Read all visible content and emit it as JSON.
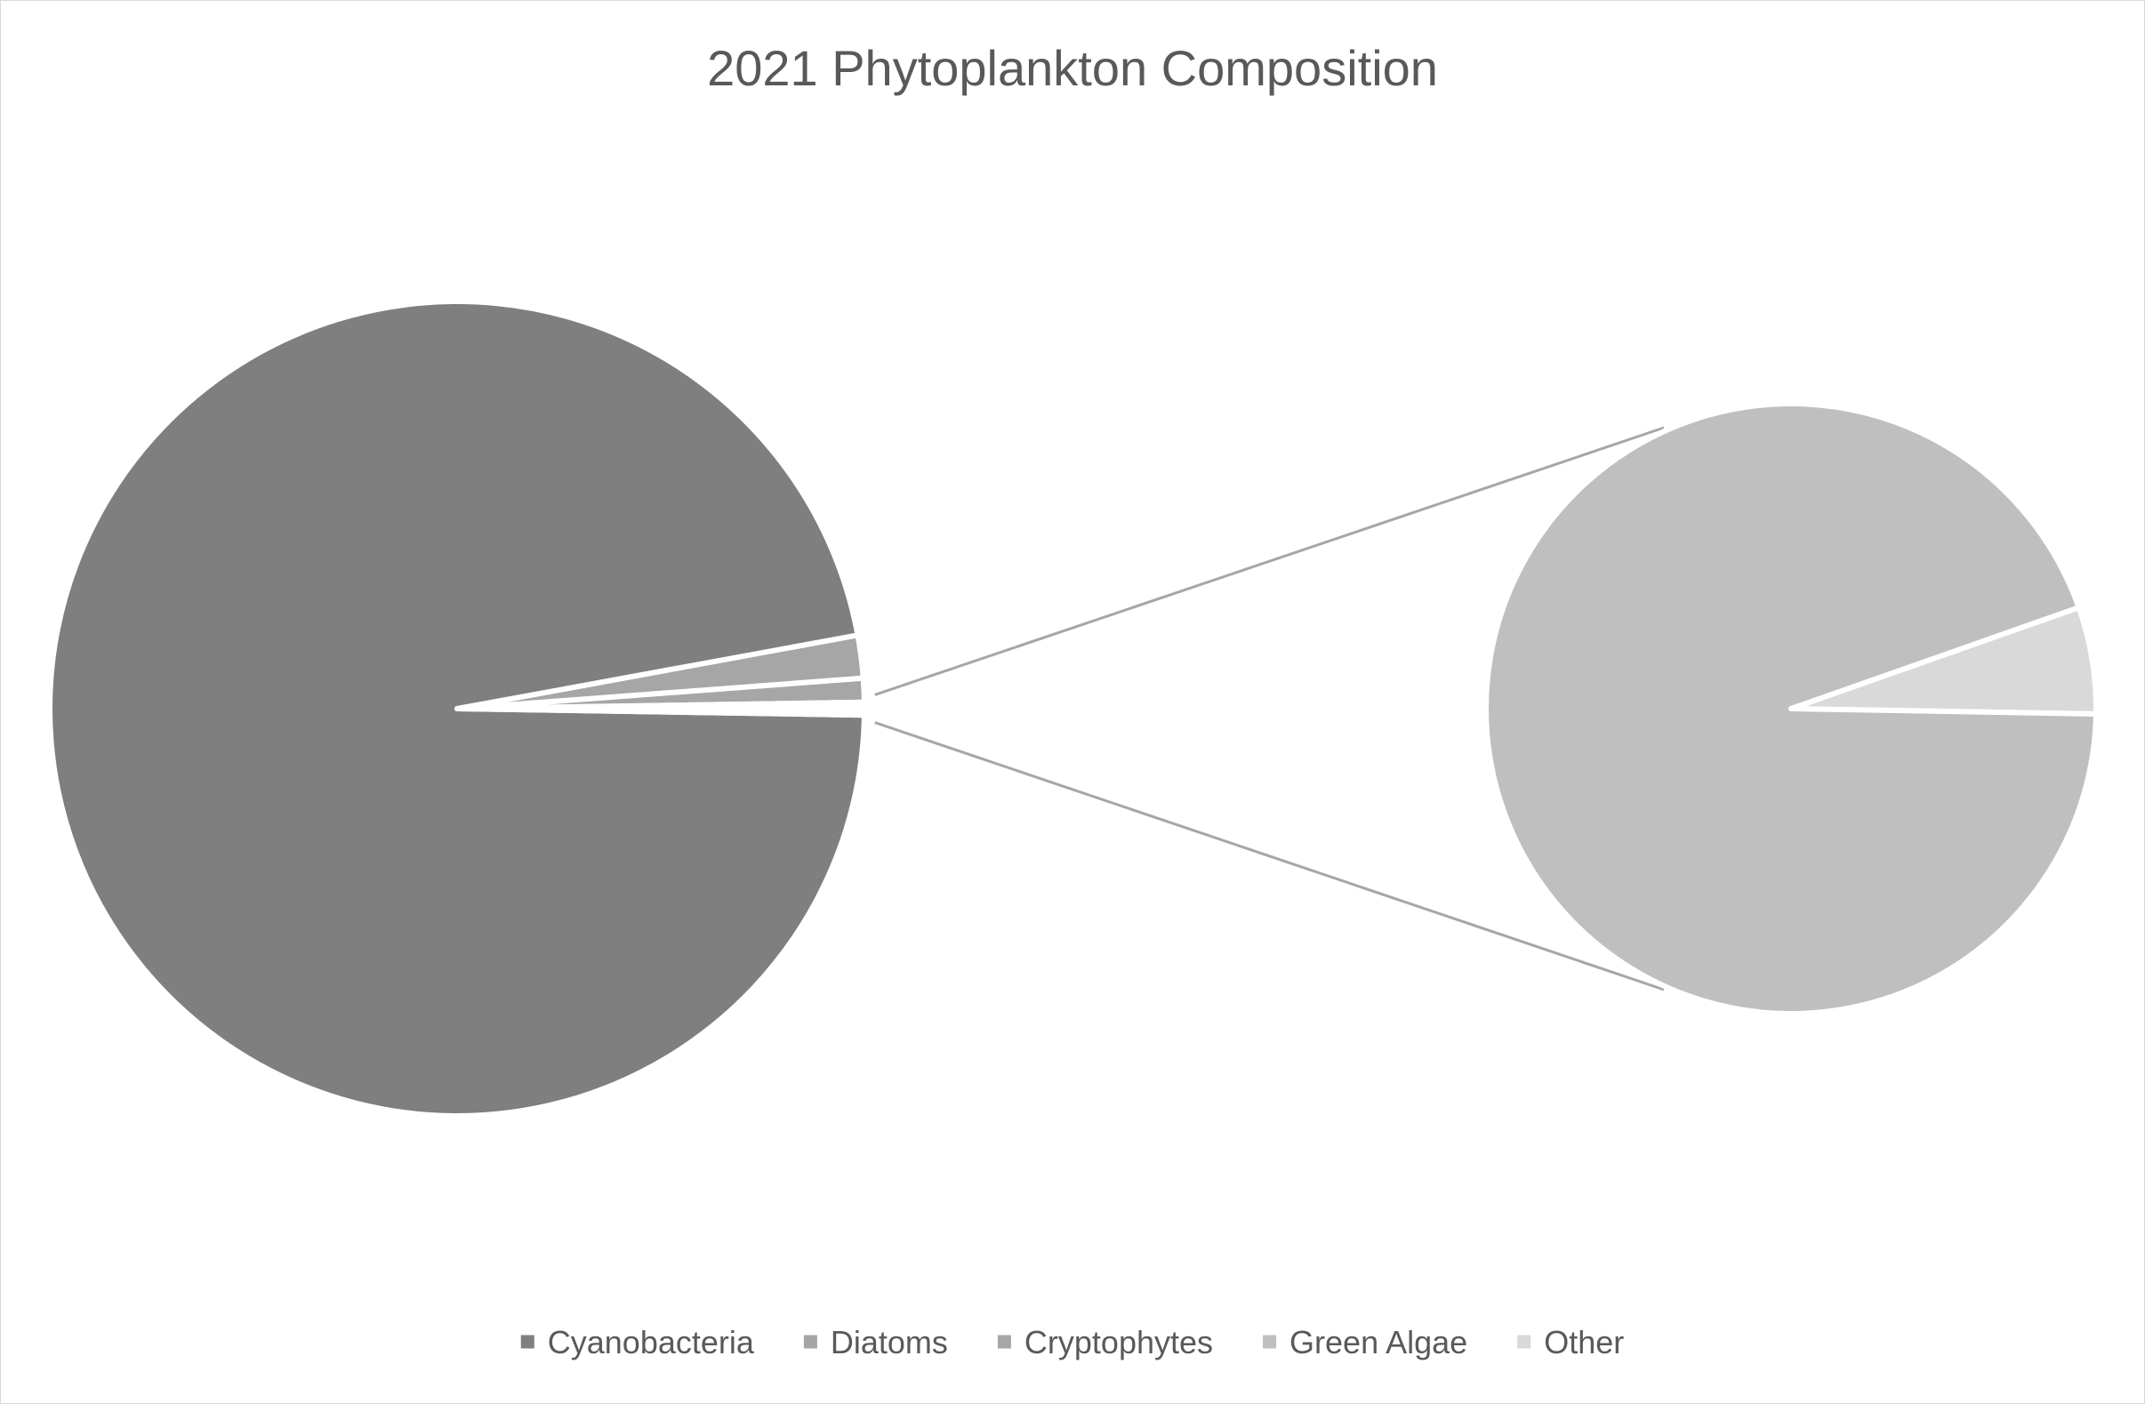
{
  "chart_data": {
    "type": "pie",
    "subtype": "pie-of-pie",
    "title": "2021 Phytoplankton Composition",
    "legend_position": "bottom",
    "categories": [
      "Cyanobacteria",
      "Diatoms",
      "Cryptophytes",
      "Green Algae",
      "Other"
    ],
    "values": [
      97.3,
      1.7,
      0.95,
      0.05,
      0.003
    ],
    "colors": [
      "#7f7f7f",
      "#a6a6a6",
      "#a6a6a6",
      "#bfbfbf",
      "#d9d9d9"
    ],
    "secondary_plot": {
      "categories": [
        "Green Algae",
        "Other"
      ],
      "values": [
        0.05,
        0.003
      ],
      "colors": [
        "#bfbfbf",
        "#d9d9d9"
      ]
    },
    "connector_color": "#a6a6a6"
  }
}
